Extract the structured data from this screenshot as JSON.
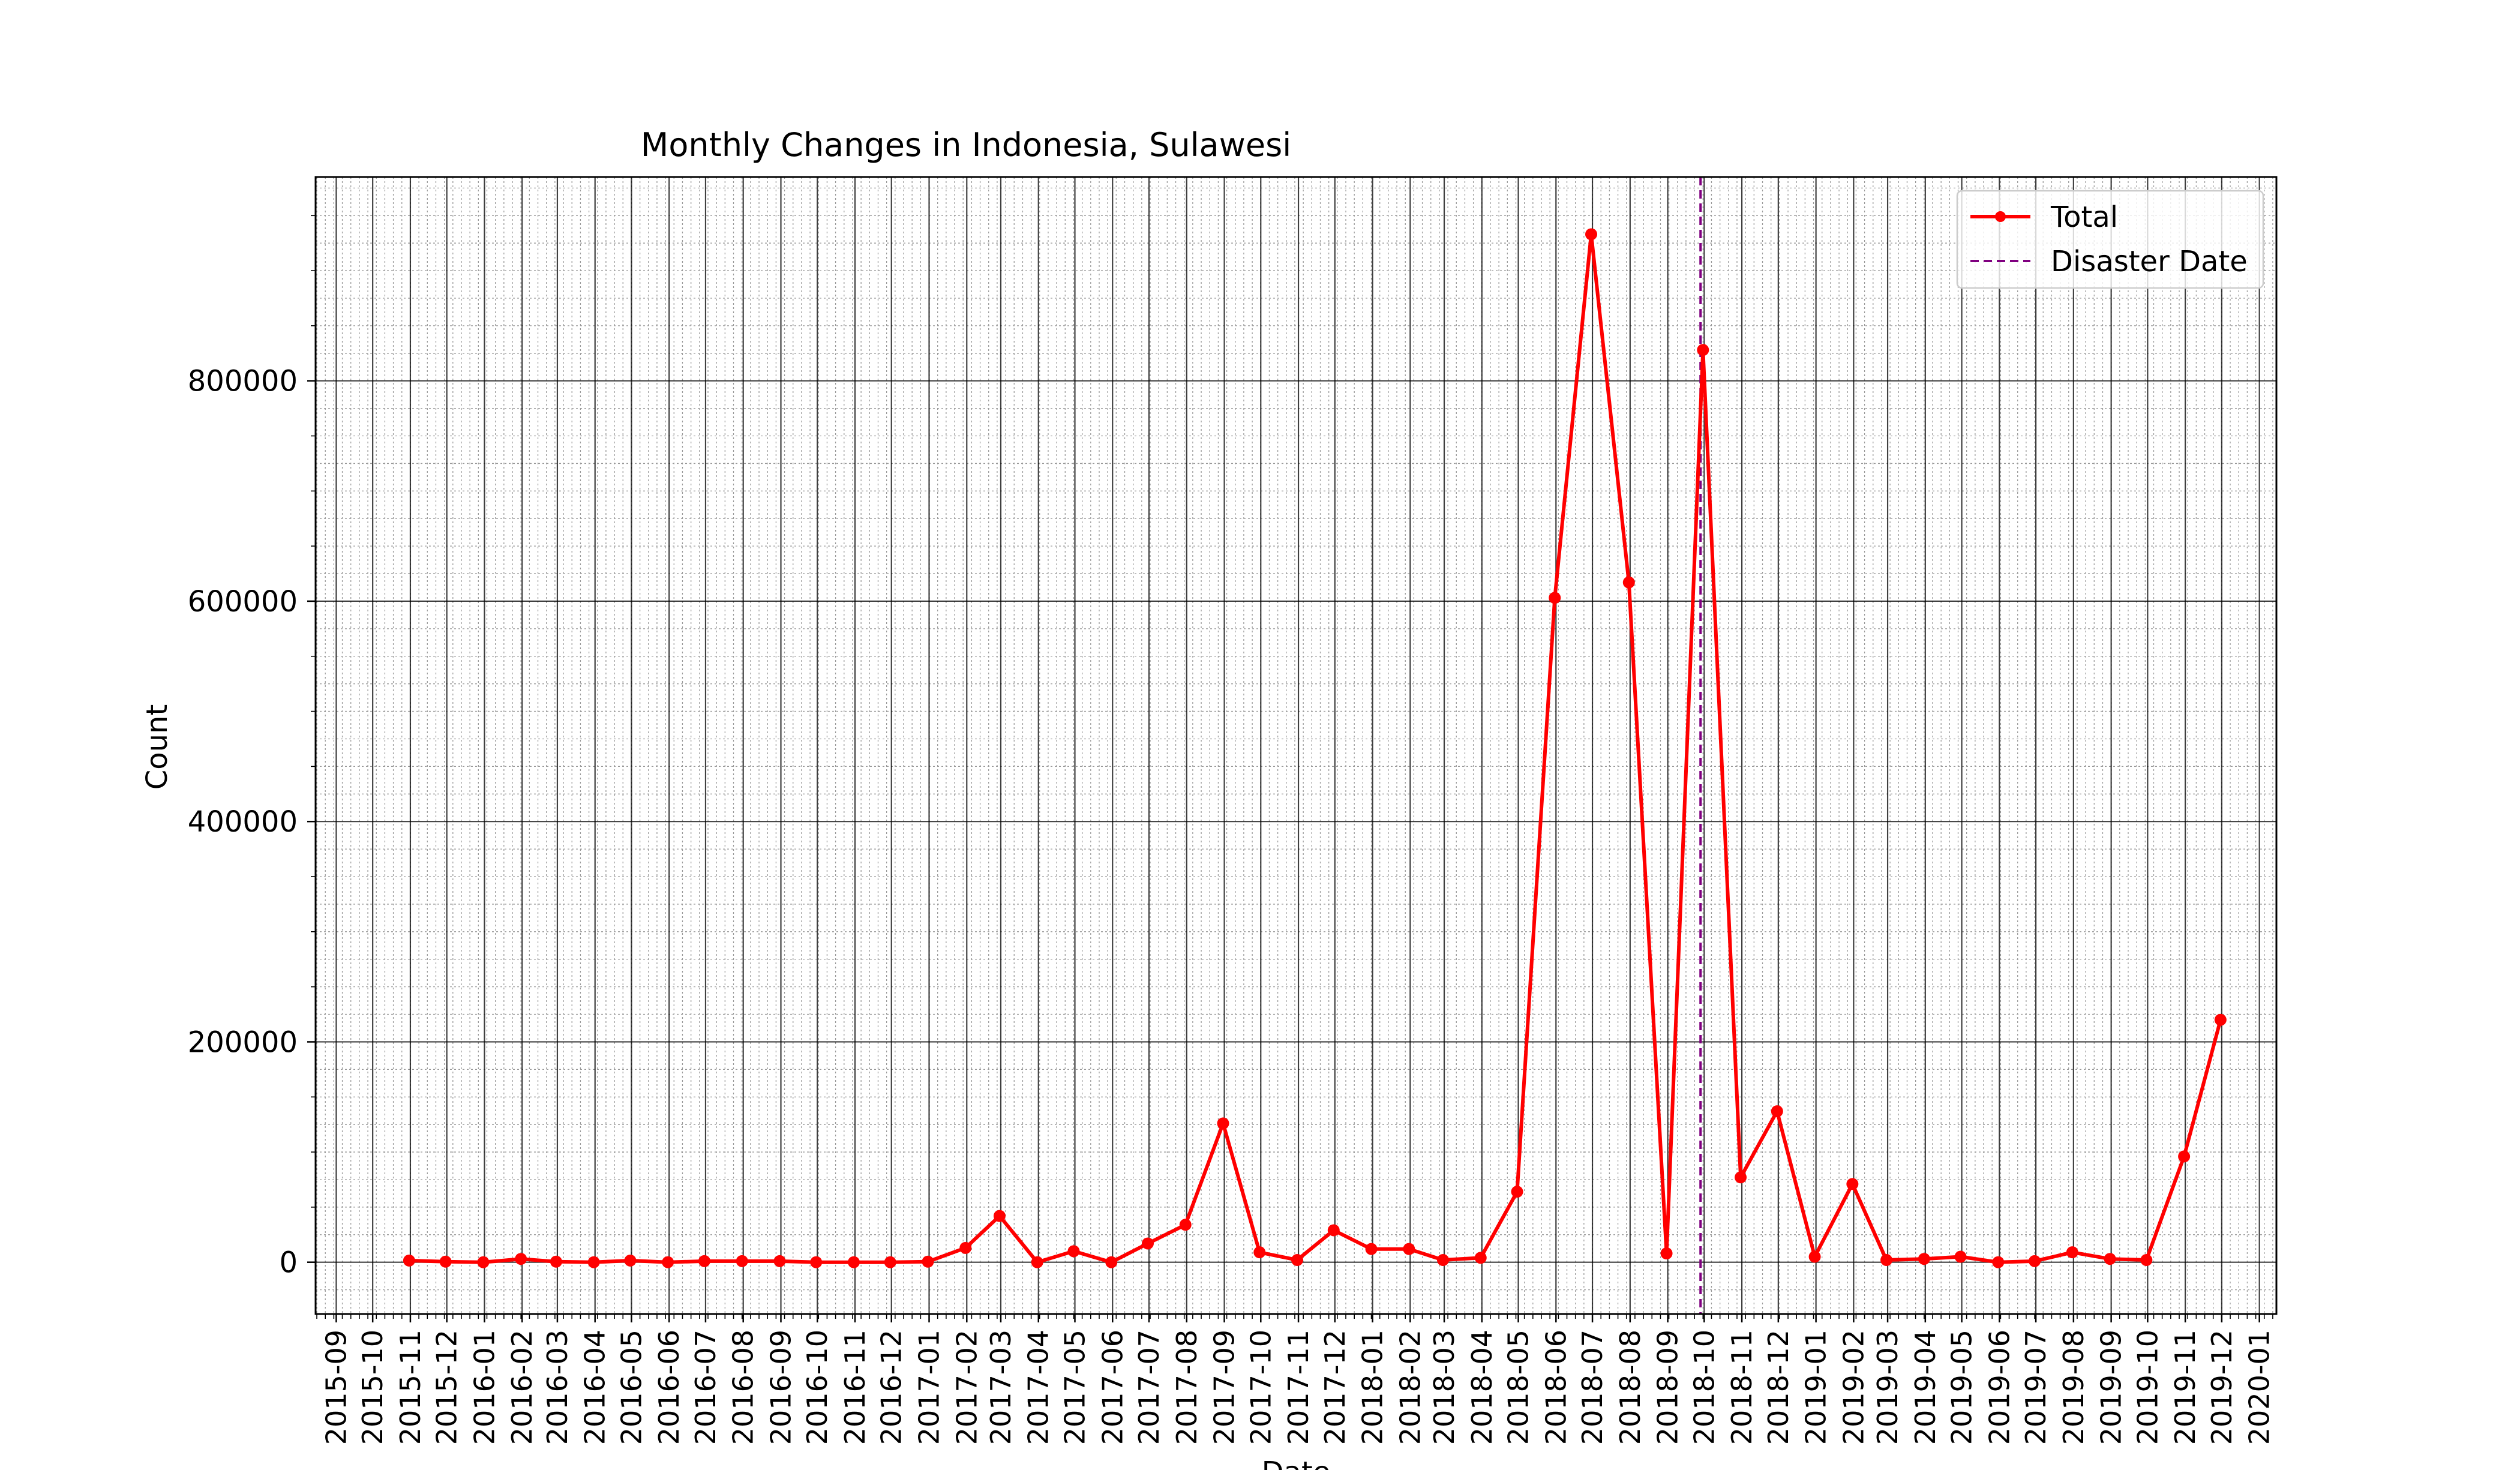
{
  "chart_data": {
    "type": "line",
    "title": "Monthly Changes in Indonesia, Sulawesi",
    "xlabel": "Date",
    "ylabel": "Count",
    "ylim": [
      -47000,
      985000
    ],
    "xlim": [
      "2015-08-15",
      "2020-01-15"
    ],
    "yticks": [
      0,
      200000,
      400000,
      600000,
      800000
    ],
    "ytick_labels": [
      "0",
      "200000",
      "400000",
      "600000",
      "800000"
    ],
    "xticks": [
      "2015-09",
      "2015-10",
      "2015-11",
      "2015-12",
      "2016-01",
      "2016-02",
      "2016-03",
      "2016-04",
      "2016-05",
      "2016-06",
      "2016-07",
      "2016-08",
      "2016-09",
      "2016-10",
      "2016-11",
      "2016-12",
      "2017-01",
      "2017-02",
      "2017-03",
      "2017-04",
      "2017-05",
      "2017-06",
      "2017-07",
      "2017-08",
      "2017-09",
      "2017-10",
      "2017-11",
      "2017-12",
      "2018-01",
      "2018-02",
      "2018-03",
      "2018-04",
      "2018-05",
      "2018-06",
      "2018-07",
      "2018-08",
      "2018-09",
      "2018-10",
      "2018-11",
      "2018-12",
      "2019-01",
      "2019-02",
      "2019-03",
      "2019-04",
      "2019-05",
      "2019-06",
      "2019-07",
      "2019-08",
      "2019-09",
      "2019-10",
      "2019-11",
      "2019-12",
      "2020-01"
    ],
    "grid": {
      "major": true,
      "minor": true
    },
    "legend_position": "top-right",
    "series": [
      {
        "name": "Total",
        "color": "#ff0000",
        "marker": "circle",
        "x": [
          "2015-10-31",
          "2015-11-30",
          "2015-12-31",
          "2016-01-31",
          "2016-02-29",
          "2016-03-31",
          "2016-04-30",
          "2016-05-31",
          "2016-06-30",
          "2016-07-31",
          "2016-08-31",
          "2016-09-30",
          "2016-10-31",
          "2016-11-30",
          "2016-12-31",
          "2017-01-31",
          "2017-02-28",
          "2017-03-31",
          "2017-04-30",
          "2017-05-31",
          "2017-06-30",
          "2017-07-31",
          "2017-08-31",
          "2017-09-30",
          "2017-10-31",
          "2017-11-30",
          "2017-12-31",
          "2018-01-31",
          "2018-02-28",
          "2018-03-31",
          "2018-04-30",
          "2018-05-31",
          "2018-06-30",
          "2018-07-31",
          "2018-08-31",
          "2018-09-30",
          "2018-10-31",
          "2018-11-30",
          "2018-12-31",
          "2019-01-31",
          "2019-02-28",
          "2019-03-31",
          "2019-04-30",
          "2019-05-31",
          "2019-06-30",
          "2019-07-31",
          "2019-08-31",
          "2019-09-30",
          "2019-10-31",
          "2019-11-30"
        ],
        "values": [
          1500,
          500,
          0,
          3000,
          500,
          0,
          1500,
          0,
          1000,
          1000,
          1000,
          0,
          0,
          0,
          500,
          13000,
          42000,
          0,
          10000,
          0,
          17000,
          34000,
          126000,
          9000,
          2000,
          29000,
          12000,
          12000,
          2000,
          4000,
          64000,
          603000,
          933000,
          617000,
          8000,
          828000,
          77000,
          137000,
          5000,
          71000,
          2000,
          3000,
          5000,
          0,
          1000,
          9000,
          3000,
          2000,
          96000,
          220000
        ]
      }
    ],
    "vlines": [
      {
        "name": "Disaster Date",
        "x": "2018-09-28",
        "color": "#800080",
        "style": "dashed"
      }
    ]
  }
}
